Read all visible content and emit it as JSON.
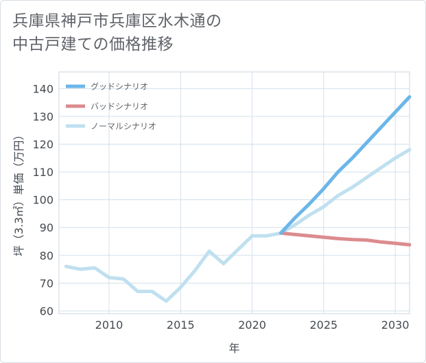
{
  "title_lines": [
    "兵庫県神戸市兵庫区水木通の",
    "中古戸建ての価格推移"
  ],
  "chart_data": {
    "type": "line",
    "title": "兵庫県神戸市兵庫区水木通の中古戸建ての価格推移",
    "xlabel": "年",
    "ylabel": "坪（3.3㎡）単価（万円）",
    "xlim": [
      2006.5,
      2031
    ],
    "ylim": [
      59,
      146
    ],
    "xticks": [
      2010,
      2015,
      2020,
      2025,
      2030
    ],
    "yticks": [
      60,
      70,
      80,
      90,
      100,
      110,
      120,
      130,
      140
    ],
    "grid": true,
    "legend_position": "top-left",
    "series": [
      {
        "name": "グッドシナリオ",
        "color": "#6bb6e9",
        "x": [
          2022,
          2023,
          2024,
          2025,
          2026,
          2027,
          2028,
          2029,
          2030,
          2031
        ],
        "y": [
          88,
          93.5,
          98.5,
          104,
          110,
          115,
          120.5,
          126,
          131.5,
          137
        ]
      },
      {
        "name": "バッドシナリオ",
        "color": "#dc8b8f",
        "x": [
          2022,
          2023,
          2024,
          2025,
          2026,
          2027,
          2028,
          2029,
          2030,
          2031
        ],
        "y": [
          88,
          87.5,
          87,
          86.5,
          86,
          85.7,
          85.5,
          84.8,
          84.3,
          83.8
        ]
      },
      {
        "name": "ノーマルシナリオ",
        "color": "#bfe0ef",
        "x": [
          2007,
          2008,
          2009,
          2010,
          2011,
          2012,
          2013,
          2014,
          2015,
          2016,
          2017,
          2018,
          2019,
          2020,
          2021,
          2022,
          2023,
          2024,
          2025,
          2026,
          2027,
          2028,
          2029,
          2030,
          2031
        ],
        "y": [
          76,
          75,
          75.5,
          72,
          71.5,
          67,
          67,
          63.5,
          68.5,
          74.5,
          81.5,
          77,
          82,
          87,
          87,
          88,
          91,
          94.5,
          97.5,
          101.5,
          104.5,
          108,
          111.5,
          115,
          118
        ]
      }
    ]
  }
}
